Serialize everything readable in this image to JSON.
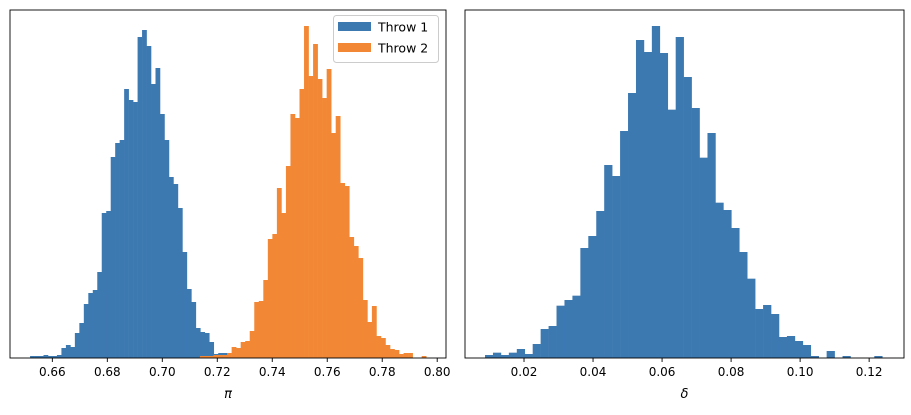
{
  "colors": {
    "throw1": "#3d79b1",
    "throw2": "#f28835"
  },
  "chart_data": [
    {
      "type": "bar",
      "subtype": "histogram",
      "xlabel": "π",
      "ylabel": "",
      "xlim": [
        0.6446,
        0.8032
      ],
      "ylim": [
        0,
        1044
      ],
      "y_ticks_shown": false,
      "grid": false,
      "xticks": [
        0.66,
        0.68,
        0.7,
        0.72,
        0.74,
        0.76,
        0.78,
        0.8
      ],
      "xtick_labels": [
        "0.66",
        "0.68",
        "0.70",
        "0.72",
        "0.74",
        "0.76",
        "0.78",
        "0.80"
      ],
      "legend": {
        "placement": "top-right",
        "entries": [
          "Throw 1",
          "Throw 2"
        ]
      },
      "series": [
        {
          "name": "Throw 1",
          "color": "#3d79b1",
          "bin_start": 0.6519,
          "bin_end": 0.7236,
          "values": [
            6,
            6,
            6,
            9,
            6,
            6,
            9,
            30,
            39,
            33,
            75,
            105,
            162,
            195,
            204,
            258,
            435,
            441,
            603,
            645,
            654,
            807,
            774,
            768,
            963,
            984,
            936,
            822,
            870,
            732,
            654,
            543,
            522,
            450,
            318,
            207,
            168,
            90,
            78,
            75,
            48,
            12,
            15,
            15
          ]
        },
        {
          "name": "Throw 2",
          "color": "#f28835",
          "bin_start": 0.7137,
          "bin_end": 0.796,
          "values": [
            6,
            6,
            6,
            9,
            9,
            9,
            15,
            33,
            30,
            48,
            51,
            81,
            168,
            171,
            234,
            357,
            372,
            510,
            435,
            576,
            732,
            720,
            807,
            996,
            846,
            942,
            837,
            780,
            867,
            675,
            726,
            525,
            516,
            363,
            336,
            300,
            174,
            108,
            156,
            66,
            60,
            39,
            27,
            24,
            12,
            15,
            15,
            0,
            0,
            6
          ]
        }
      ]
    },
    {
      "type": "bar",
      "subtype": "histogram",
      "xlabel": "δ",
      "ylabel": "",
      "xlim": [
        0.0029,
        0.1301
      ],
      "ylim": [
        0,
        1044
      ],
      "y_ticks_shown": false,
      "grid": false,
      "xticks": [
        0.02,
        0.04,
        0.06,
        0.08,
        0.1,
        0.12
      ],
      "xtick_labels": [
        "0.02",
        "0.04",
        "0.06",
        "0.08",
        "0.10",
        "0.12"
      ],
      "series": [
        {
          "color": "#3d79b1",
          "bin_start": 0.0087,
          "bin_end": 0.1238,
          "values": [
            9,
            16,
            9,
            16,
            27,
            12,
            42,
            87,
            96,
            157,
            174,
            187,
            330,
            366,
            441,
            579,
            546,
            681,
            795,
            954,
            918,
            996,
            915,
            745,
            963,
            843,
            750,
            601,
            675,
            466,
            444,
            390,
            318,
            238,
            147,
            159,
            132,
            63,
            66,
            51,
            39,
            6,
            0,
            21,
            0,
            6,
            0,
            0,
            0,
            6
          ]
        }
      ]
    }
  ]
}
